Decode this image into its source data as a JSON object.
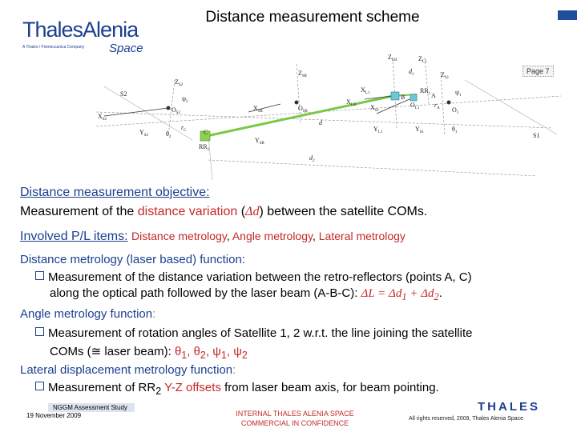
{
  "header": {
    "logo_brand": "ThalesAlenia",
    "logo_tagline": "A Thales / Finmeccanica Company",
    "logo_space": "Space",
    "title": "Distance measurement scheme",
    "page_label": "Page 7"
  },
  "diagram": {
    "labels": {
      "s2": "S2",
      "s1": "S1",
      "z_s2": "Z",
      "z_s2_sub": "S2",
      "psi2": "ψ",
      "psi2_sub": "2",
      "o_s2": "O",
      "o_s2_sub": "S2",
      "x_s2": "X",
      "x_s2_sub": "S2",
      "y_s2": "Y",
      "y_s2_sub": "S2",
      "theta2": "θ",
      "theta2_sub": "2",
      "rc": "r",
      "rc_sub": "C",
      "c": "C",
      "rr2": "RR",
      "rr2_sub": "2",
      "y_sr": "Y",
      "y_sr_sub": "SR",
      "z_sr_top": "Z",
      "z_sr_top_sub": "SR",
      "x_sr": "X",
      "x_sr_sub": "SR",
      "o_sr": "O",
      "o_sr_sub": "SR",
      "d": "d",
      "d2": "d",
      "d2_sub": "2",
      "x_lb": "X",
      "x_lb_sub": "LB",
      "x_l1": "X",
      "x_l1_sub": "L1",
      "x_s1": "X",
      "x_s1_sub": "S1",
      "z_lb": "Z",
      "z_lb_sub": "LB",
      "z_l1": "Z",
      "z_l1_sub": "L1",
      "d1": "d",
      "d1_sub": "1",
      "z_s1": "Z",
      "z_s1_sub": "S1",
      "rr1": "RR",
      "rr1_sub": "1",
      "psi1": "ψ",
      "psi1_sub": "1",
      "b": "B",
      "a": "A",
      "o_l1": "O",
      "o_l1_sub": "L1",
      "o_1": "O",
      "o_1_sub": "1",
      "ra": "r",
      "ra_sub": "A",
      "y_l1": "Y",
      "y_l1_sub": "L1",
      "y_s1": "Y",
      "y_s1_sub": "S1",
      "theta1": "θ",
      "theta1_sub": "1"
    }
  },
  "content": {
    "objective_heading": "Distance measurement objective:",
    "objective_text_1": "Measurement of the ",
    "objective_highlight": "distance variation",
    "objective_text_2": " (",
    "objective_math": "Δd",
    "objective_text_3": ") between the satellite COMs.",
    "involved_heading": "Involved P/L items:",
    "item_distance": "Distance metrology",
    "comma": ", ",
    "item_angle": "Angle metrology",
    "item_lateral": "Lateral metrology",
    "dm_heading": "Distance metrology (laser based) function:",
    "dm_bullet_1": "Measurement of the distance variation between the retro-reflectors (points A, C)",
    "dm_bullet_2": "along the optical path followed by the laser beam (A-B-C): ",
    "dm_math": "ΔL = Δd",
    "dm_math_sub1": "1",
    "dm_math_plus": " + Δd",
    "dm_math_sub2": "2",
    "dm_period": ".",
    "am_heading": "Angle metrology function",
    "colon": ":",
    "am_bullet_1": "Measurement of rotation angles of Satellite 1, 2 w.r.t. the line joining the satellite",
    "am_bullet_2": "COMs (≅ laser beam): ",
    "am_math": "θ",
    "am_sub1": "1",
    "am_sep": ", θ",
    "am_sub2": "2",
    "am_sep2": ", ψ",
    "am_sub3": "1",
    "am_sep3": ", ψ",
    "am_sub4": "2",
    "ld_heading": "Lateral displacement metrology function",
    "ld_bullet_1": "Measurement of RR",
    "ld_bullet_sub": "2",
    "ld_highlight": " Y-Z offsets",
    "ld_bullet_2": " from laser beam axis, for beam pointing."
  },
  "footer": {
    "ngm": "NGGM Assessment Study",
    "date": "19 November 2009",
    "internal_1": "INTERNAL THALES ALENIA SPACE",
    "internal_2": "COMMERCIAL IN CONFIDENCE",
    "thales": "THALES",
    "rights": "All rights reserved, 2009, Thales Alenia Space"
  },
  "colors": {
    "brand_blue": "#1b3f8f",
    "highlight_red": "#c62828",
    "beam_green": "#7ac943"
  }
}
